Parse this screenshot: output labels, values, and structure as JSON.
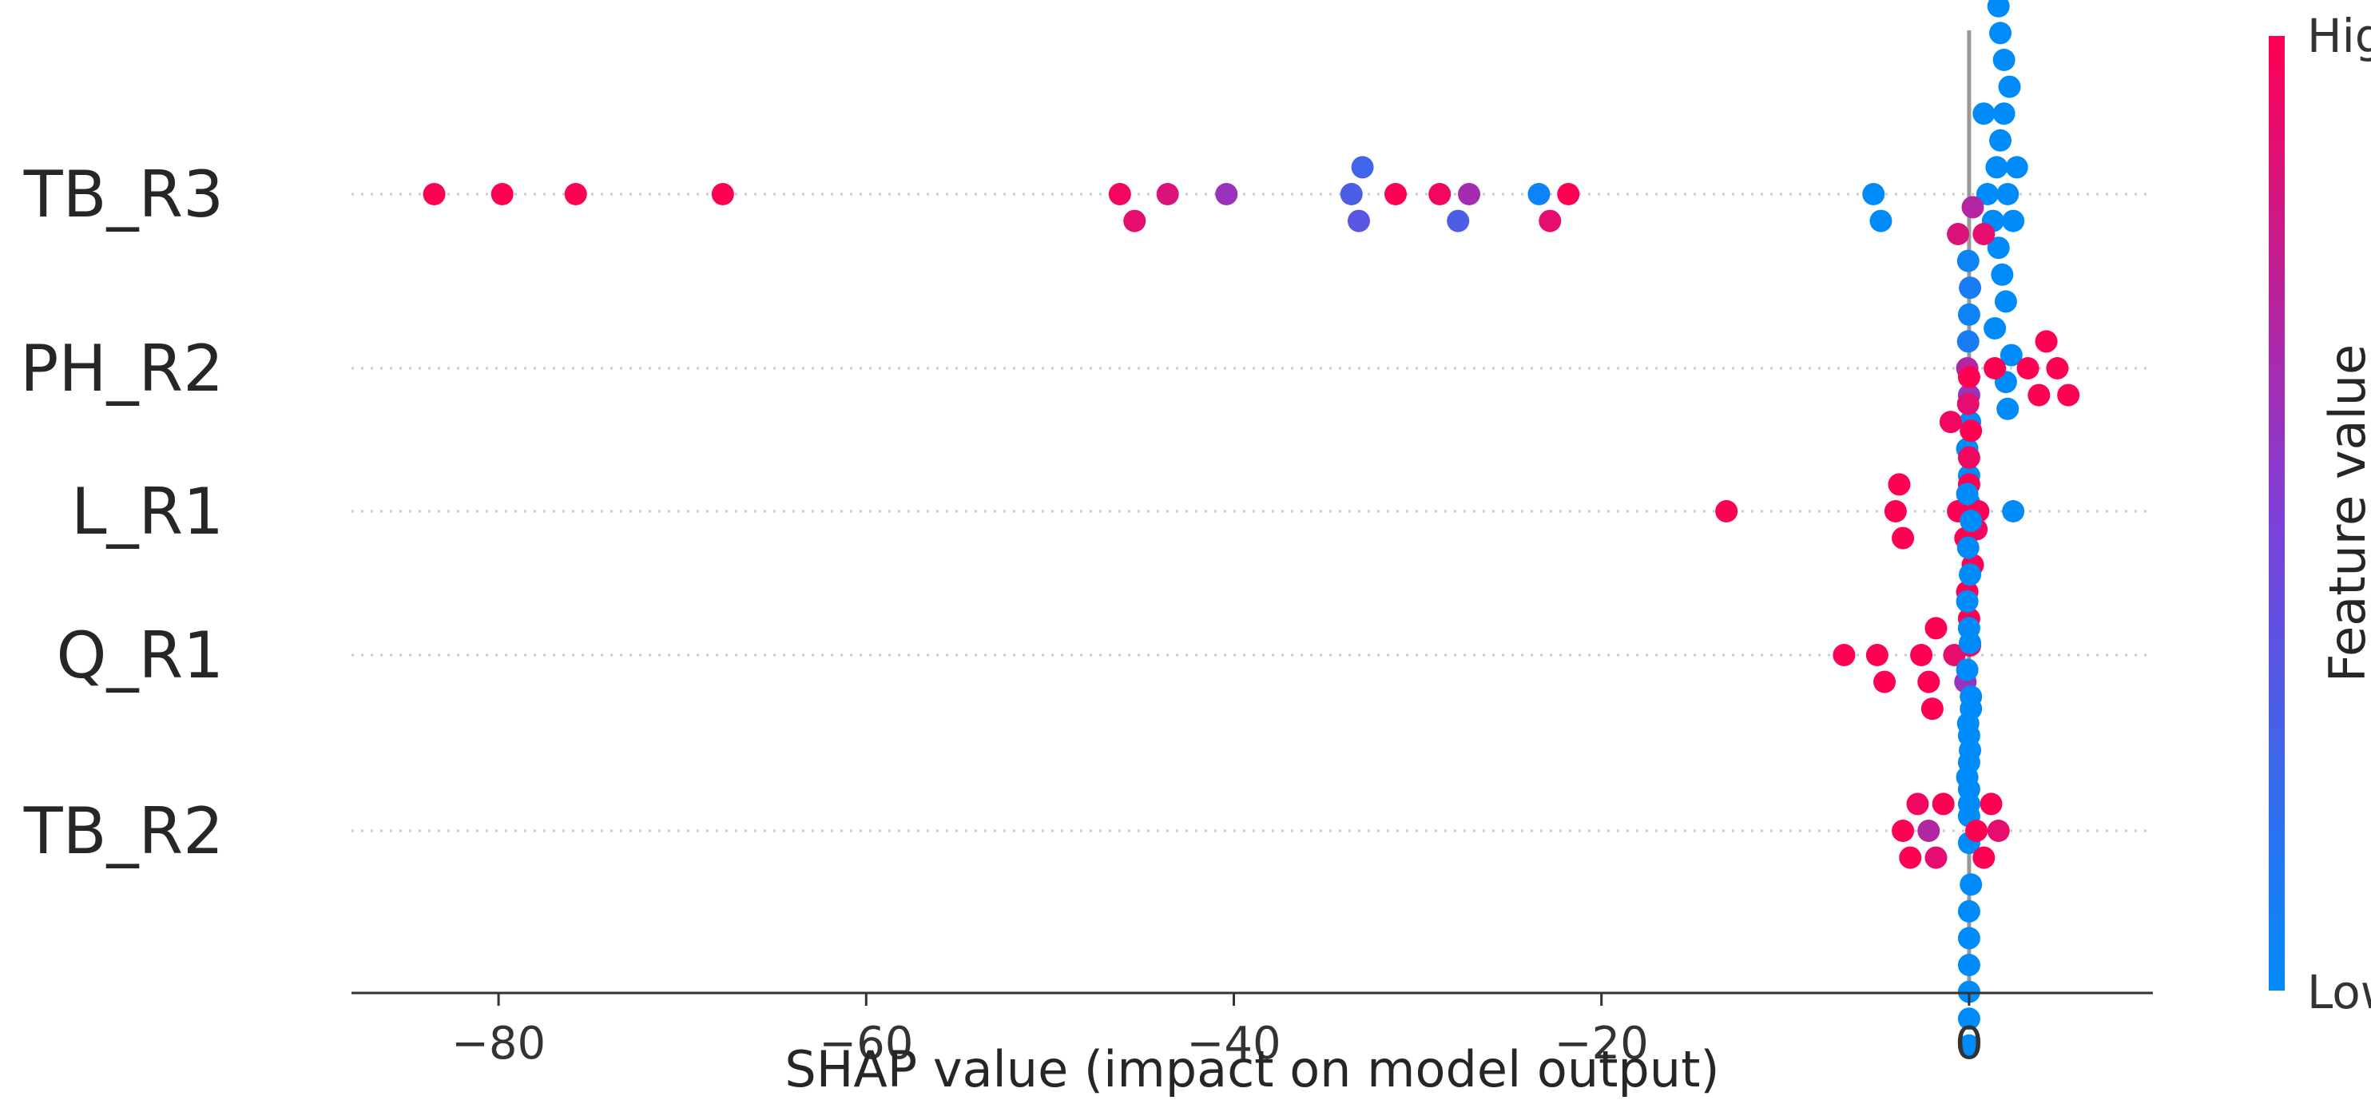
{
  "chart_data": {
    "type": "scatter",
    "subtype": "shap-beeswarm",
    "xlabel": "SHAP value (impact on model output)",
    "xlim": [
      -88,
      10
    ],
    "xticks": [
      -80,
      -60,
      -40,
      -20,
      0
    ],
    "xtick_labels": [
      "−80",
      "−60",
      "−40",
      "−20",
      "0"
    ],
    "grid": false,
    "features": [
      {
        "name": "TB_R3",
        "points": [
          {
            "x": -83.5,
            "v": 1.0
          },
          {
            "x": -79.8,
            "v": 1.0
          },
          {
            "x": -75.8,
            "v": 1.0
          },
          {
            "x": -67.8,
            "v": 1.0
          },
          {
            "x": -46.2,
            "v": 0.95
          },
          {
            "x": -45.4,
            "v": 0.9
          },
          {
            "x": -43.6,
            "v": 0.85
          },
          {
            "x": -40.4,
            "v": 0.6
          },
          {
            "x": -33.6,
            "v": 0.3
          },
          {
            "x": -33.2,
            "v": 0.35
          },
          {
            "x": -33.0,
            "v": 0.25
          },
          {
            "x": -31.2,
            "v": 1.0
          },
          {
            "x": -28.8,
            "v": 0.95
          },
          {
            "x": -27.8,
            "v": 0.3
          },
          {
            "x": -27.2,
            "v": 0.65
          },
          {
            "x": -23.4,
            "v": 0.05
          },
          {
            "x": -22.8,
            "v": 0.9
          },
          {
            "x": -21.8,
            "v": 1.0
          },
          {
            "x": -5.2,
            "v": 0.0
          },
          {
            "x": -4.8,
            "v": 0.0
          },
          {
            "x": 1.0,
            "v": 0.0
          },
          {
            "x": 1.3,
            "v": 0.0
          },
          {
            "x": 1.5,
            "v": 0.0
          },
          {
            "x": 1.6,
            "v": 0.0
          },
          {
            "x": 1.7,
            "v": 0.0
          },
          {
            "x": 1.8,
            "v": 0.0
          },
          {
            "x": 1.9,
            "v": 0.0
          },
          {
            "x": 2.0,
            "v": 0.0
          },
          {
            "x": 2.1,
            "v": 0.0
          },
          {
            "x": 2.2,
            "v": 0.0
          },
          {
            "x": 2.4,
            "v": 0.0
          },
          {
            "x": 2.6,
            "v": 0.0
          },
          {
            "x": 0.8,
            "v": 0.0
          },
          {
            "x": 1.4,
            "v": 0.0
          },
          {
            "x": 1.9,
            "v": 0.0
          },
          {
            "x": 2.3,
            "v": 0.0
          },
          {
            "x": 1.7,
            "v": 0.0
          },
          {
            "x": 2.0,
            "v": 0.0
          },
          {
            "x": 1.6,
            "v": 0.0
          },
          {
            "x": 2.1,
            "v": 0.0
          }
        ]
      },
      {
        "name": "PH_R2",
        "points": [
          {
            "x": -0.1,
            "v": 0.7
          },
          {
            "x": 0.0,
            "v": 0.6
          },
          {
            "x": -0.05,
            "v": 0.1
          },
          {
            "x": 0.05,
            "v": 0.0
          },
          {
            "x": 0.0,
            "v": 0.05
          },
          {
            "x": -0.1,
            "v": 0.0
          },
          {
            "x": 0.05,
            "v": 0.1
          },
          {
            "x": 0.0,
            "v": 0.0
          },
          {
            "x": -0.05,
            "v": 0.05
          },
          {
            "x": 0.0,
            "v": 0.0
          },
          {
            "x": -1.0,
            "v": 0.95
          },
          {
            "x": -0.6,
            "v": 0.85
          },
          {
            "x": 0.4,
            "v": 0.95
          },
          {
            "x": 0.8,
            "v": 0.9
          },
          {
            "x": 1.4,
            "v": 1.0
          },
          {
            "x": 0.2,
            "v": 0.7
          },
          {
            "x": 3.2,
            "v": 1.0
          },
          {
            "x": 3.8,
            "v": 1.0
          },
          {
            "x": 4.2,
            "v": 1.0
          },
          {
            "x": 4.8,
            "v": 1.0
          },
          {
            "x": 5.4,
            "v": 1.0
          }
        ]
      },
      {
        "name": "L_R1",
        "points": [
          {
            "x": -13.2,
            "v": 1.0
          },
          {
            "x": -4.0,
            "v": 1.0
          },
          {
            "x": -3.6,
            "v": 1.0
          },
          {
            "x": -3.8,
            "v": 1.0
          },
          {
            "x": -0.6,
            "v": 1.0
          },
          {
            "x": -0.2,
            "v": 1.0
          },
          {
            "x": 0.0,
            "v": 1.0
          },
          {
            "x": 0.2,
            "v": 1.0
          },
          {
            "x": 0.5,
            "v": 1.0
          },
          {
            "x": 0.0,
            "v": 0.95
          },
          {
            "x": -0.1,
            "v": 1.0
          },
          {
            "x": 0.1,
            "v": 1.0
          },
          {
            "x": 0.0,
            "v": 1.0
          },
          {
            "x": -0.05,
            "v": 0.9
          },
          {
            "x": 0.05,
            "v": 1.0
          },
          {
            "x": 0.0,
            "v": 1.0
          },
          {
            "x": 2.4,
            "v": 0.0
          }
        ]
      },
      {
        "name": "Q_R1",
        "points": [
          {
            "x": -6.8,
            "v": 1.0
          },
          {
            "x": -5.0,
            "v": 1.0
          },
          {
            "x": -4.6,
            "v": 1.0
          },
          {
            "x": -2.6,
            "v": 1.0
          },
          {
            "x": -2.2,
            "v": 1.0
          },
          {
            "x": -1.8,
            "v": 1.0
          },
          {
            "x": -2.0,
            "v": 1.0
          },
          {
            "x": -0.8,
            "v": 0.9
          },
          {
            "x": -0.2,
            "v": 0.6
          },
          {
            "x": 0.0,
            "v": 0.0
          },
          {
            "x": 0.1,
            "v": 0.0
          },
          {
            "x": -0.1,
            "v": 0.0
          },
          {
            "x": 0.0,
            "v": 0.0
          },
          {
            "x": 0.05,
            "v": 0.0
          },
          {
            "x": 0.0,
            "v": 0.0
          },
          {
            "x": -0.05,
            "v": 0.0
          },
          {
            "x": 0.0,
            "v": 0.0
          },
          {
            "x": 0.1,
            "v": 0.0
          },
          {
            "x": 0.0,
            "v": 0.0
          },
          {
            "x": -0.1,
            "v": 0.0
          },
          {
            "x": 0.0,
            "v": 0.0
          }
        ]
      },
      {
        "name": "TB_R2",
        "points": [
          {
            "x": -3.6,
            "v": 1.0
          },
          {
            "x": -3.2,
            "v": 1.0
          },
          {
            "x": -2.8,
            "v": 0.95
          },
          {
            "x": -2.2,
            "v": 0.7
          },
          {
            "x": -1.8,
            "v": 0.9
          },
          {
            "x": -1.4,
            "v": 1.0
          },
          {
            "x": 0.4,
            "v": 1.0
          },
          {
            "x": 0.8,
            "v": 1.0
          },
          {
            "x": 1.2,
            "v": 1.0
          },
          {
            "x": 1.6,
            "v": 0.9
          },
          {
            "x": 0.0,
            "v": 0.0
          },
          {
            "x": 0.1,
            "v": 0.0
          },
          {
            "x": -0.1,
            "v": 0.0
          },
          {
            "x": 0.0,
            "v": 0.0
          },
          {
            "x": 0.05,
            "v": 0.0
          },
          {
            "x": 0.0,
            "v": 0.0
          },
          {
            "x": -0.05,
            "v": 0.0
          },
          {
            "x": 0.0,
            "v": 0.0
          },
          {
            "x": 0.1,
            "v": 0.0
          },
          {
            "x": 0.0,
            "v": 0.0
          },
          {
            "x": -0.1,
            "v": 0.0
          },
          {
            "x": 0.0,
            "v": 0.0
          },
          {
            "x": 0.05,
            "v": 0.0
          },
          {
            "x": 0.0,
            "v": 0.0
          }
        ]
      }
    ],
    "colorbar": {
      "label": "Feature value",
      "high_label": "High",
      "low_label": "Low",
      "high_color": "#ff0052",
      "mid_color": "#7f3fd8",
      "low_color": "#008bfb"
    }
  }
}
